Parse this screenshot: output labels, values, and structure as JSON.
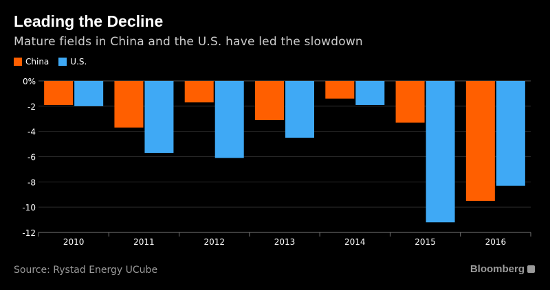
{
  "header": {
    "title": "Leading the Decline",
    "subtitle": "Mature fields in China and the U.S. have led the slowdown"
  },
  "legend": {
    "items": [
      {
        "label": "China",
        "color": "#ff5f00"
      },
      {
        "label": "U.S.",
        "color": "#3fa9f5"
      }
    ]
  },
  "footer": {
    "source": "Source: Rystad Energy UCube",
    "brand": "Bloomberg"
  },
  "chart_data": {
    "type": "bar",
    "categories": [
      "2010",
      "2011",
      "2012",
      "2013",
      "2014",
      "2015",
      "2016"
    ],
    "series": [
      {
        "name": "China",
        "color": "#ff5f00",
        "values": [
          -1.9,
          -3.7,
          -1.7,
          -3.1,
          -1.4,
          -3.3,
          -9.5
        ]
      },
      {
        "name": "U.S.",
        "color": "#3fa9f5",
        "values": [
          -2.0,
          -5.7,
          -6.1,
          -4.5,
          -1.9,
          -11.2,
          -8.3
        ]
      }
    ],
    "ylim": [
      -12,
      0
    ],
    "yticks": [
      0,
      -2,
      -4,
      -6,
      -8,
      -10,
      -12
    ],
    "ytick_labels": [
      "0%",
      "-2",
      "-4",
      "-6",
      "-8",
      "-10",
      "-12"
    ],
    "grid": true,
    "legend_position": "top-left"
  }
}
